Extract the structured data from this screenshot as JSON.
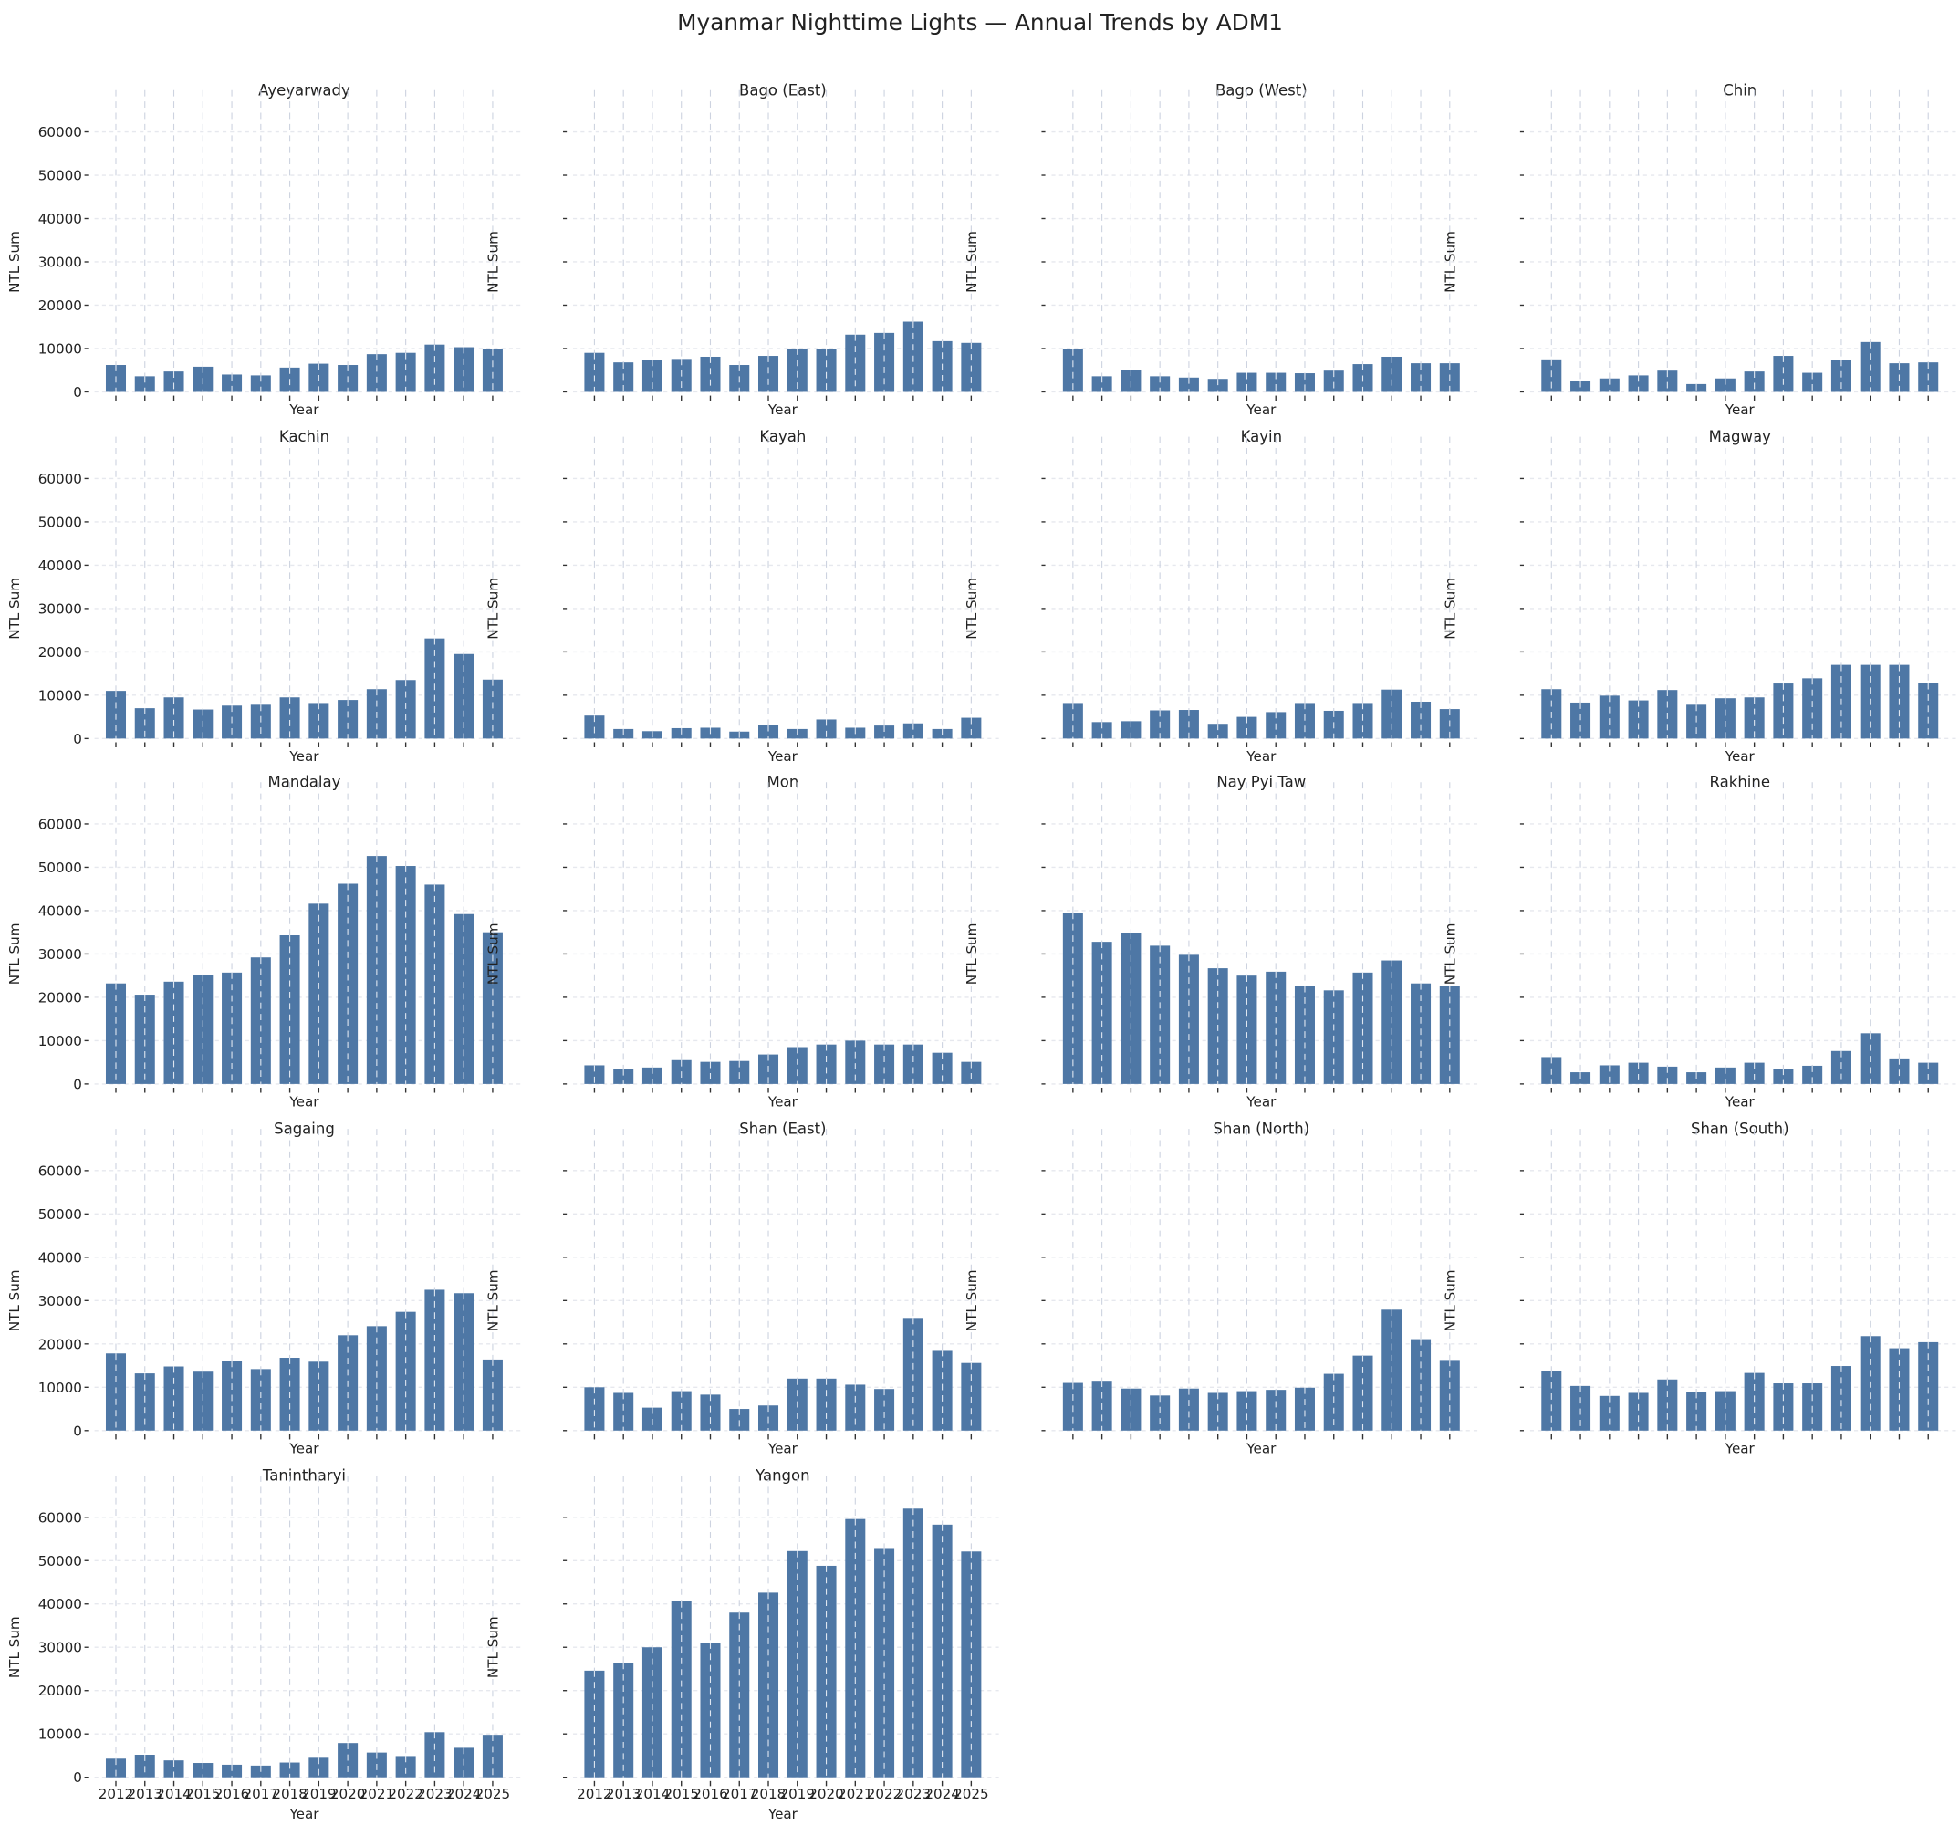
{
  "chart_data": {
    "type": "bar",
    "title": "Myanmar Nighttime Lights — Annual Trends by ADM1",
    "xlabel": "Year",
    "ylabel": "NTL Sum",
    "ylim": [
      0,
      65000
    ],
    "yticks": [
      "0",
      "10000",
      "20000",
      "30000",
      "40000",
      "50000",
      "60000"
    ],
    "categories": [
      "2012",
      "2013",
      "2014",
      "2015",
      "2016",
      "2017",
      "2018",
      "2019",
      "2020",
      "2021",
      "2022",
      "2023",
      "2024",
      "2025"
    ],
    "grid": true,
    "series": [
      {
        "name": "Ayeyarwady",
        "values": [
          6200,
          3600,
          4700,
          5800,
          4000,
          3800,
          5600,
          6500,
          6200,
          8700,
          9000,
          10900,
          10300,
          9800
        ]
      },
      {
        "name": "Bago (East)",
        "values": [
          9000,
          6800,
          7400,
          7600,
          8100,
          6200,
          8300,
          10000,
          9800,
          13200,
          13600,
          16200,
          11700,
          11300
        ]
      },
      {
        "name": "Bago (West)",
        "values": [
          9800,
          3600,
          5100,
          3600,
          3300,
          3000,
          4400,
          4400,
          4300,
          4900,
          6400,
          8100,
          6600,
          6600
        ]
      },
      {
        "name": "Chin",
        "values": [
          7500,
          2500,
          3100,
          3800,
          4900,
          1800,
          3100,
          4700,
          8300,
          4400,
          7400,
          11500,
          6600,
          6800
        ]
      },
      {
        "name": "Kachin",
        "values": [
          11000,
          7000,
          9500,
          6700,
          7600,
          7800,
          9500,
          8200,
          8900,
          11400,
          13500,
          23100,
          19500,
          13600
        ]
      },
      {
        "name": "Kayah",
        "values": [
          5300,
          2200,
          1700,
          2400,
          2500,
          1600,
          3100,
          2200,
          4400,
          2500,
          3000,
          3500,
          2200,
          4800
        ]
      },
      {
        "name": "Kayin",
        "values": [
          8200,
          3800,
          4000,
          6500,
          6600,
          3400,
          5000,
          6100,
          8200,
          6400,
          8200,
          11300,
          8500,
          6800
        ]
      },
      {
        "name": "Magway",
        "values": [
          11400,
          8300,
          9900,
          8800,
          11200,
          7800,
          9300,
          9500,
          12700,
          13900,
          17000,
          17000,
          17000,
          12800
        ]
      },
      {
        "name": "Mandalay",
        "values": [
          23200,
          20600,
          23600,
          25100,
          25700,
          29200,
          34300,
          41600,
          46200,
          52600,
          50300,
          46000,
          39200,
          35000
        ]
      },
      {
        "name": "Mon",
        "values": [
          4300,
          3400,
          3800,
          5500,
          5100,
          5300,
          6800,
          8500,
          9100,
          10000,
          9100,
          9100,
          7200,
          5100
        ]
      },
      {
        "name": "Nay Pyi Taw",
        "values": [
          39500,
          32800,
          34900,
          31900,
          29800,
          26700,
          25000,
          25900,
          22600,
          21600,
          25700,
          28500,
          23200,
          22700
        ]
      },
      {
        "name": "Rakhine",
        "values": [
          6200,
          2700,
          4300,
          4900,
          4000,
          2700,
          3800,
          4900,
          3500,
          4200,
          7600,
          11700,
          5900,
          4900
        ]
      },
      {
        "name": "Sagaing",
        "values": [
          17800,
          13200,
          14800,
          13600,
          16100,
          14200,
          16800,
          15900,
          22000,
          24100,
          27400,
          32500,
          31700,
          16400
        ]
      },
      {
        "name": "Shan (East)",
        "values": [
          10000,
          8700,
          5300,
          9100,
          8300,
          5000,
          5800,
          12000,
          12000,
          10600,
          9600,
          26000,
          18600,
          15600
        ]
      },
      {
        "name": "Shan (North)",
        "values": [
          11000,
          11500,
          9700,
          8100,
          9700,
          8700,
          9100,
          9400,
          9900,
          13100,
          17300,
          27900,
          21100,
          16300
        ]
      },
      {
        "name": "Shan (South)",
        "values": [
          13800,
          10300,
          8000,
          8700,
          11800,
          8900,
          9100,
          13300,
          10900,
          10900,
          14900,
          21800,
          19000,
          20400
        ]
      },
      {
        "name": "Tanintharyi",
        "values": [
          4300,
          5200,
          3900,
          3300,
          2900,
          2700,
          3400,
          4500,
          7900,
          5700,
          4900,
          10400,
          6800,
          9800
        ]
      },
      {
        "name": "Yangon",
        "values": [
          24600,
          26400,
          30000,
          40600,
          31100,
          38000,
          42600,
          52200,
          48800,
          59600,
          52900,
          62000,
          58300,
          52100
        ]
      }
    ],
    "colors": {
      "bar": "#4e77a5"
    }
  }
}
